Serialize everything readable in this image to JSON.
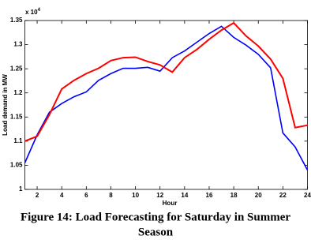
{
  "chart_data": {
    "type": "line",
    "x": [
      1,
      2,
      3,
      4,
      5,
      6,
      7,
      8,
      9,
      10,
      11,
      12,
      13,
      14,
      15,
      16,
      17,
      18,
      19,
      20,
      21,
      22,
      23,
      24
    ],
    "series": [
      {
        "color": "#0000ff",
        "values": [
          1.055,
          1.113,
          1.16,
          1.178,
          1.192,
          1.202,
          1.226,
          1.24,
          1.251,
          1.251,
          1.253,
          1.245,
          1.273,
          1.287,
          1.305,
          1.323,
          1.338,
          1.315,
          1.299,
          1.28,
          1.252,
          1.117,
          1.088,
          1.04
        ]
      },
      {
        "color": "#ff0000",
        "values": [
          1.1,
          1.11,
          1.155,
          1.208,
          1.226,
          1.24,
          1.251,
          1.267,
          1.273,
          1.274,
          1.265,
          1.258,
          1.243,
          1.273,
          1.29,
          1.311,
          1.33,
          1.345,
          1.318,
          1.297,
          1.27,
          1.23,
          1.128,
          1.133
        ]
      }
    ],
    "xlim": [
      1,
      24
    ],
    "xticks": [
      2,
      4,
      6,
      8,
      10,
      12,
      14,
      16,
      18,
      20,
      22,
      24
    ],
    "ylim": [
      1,
      1.35
    ],
    "yticks": [
      1,
      1.05,
      1.1,
      1.15,
      1.2,
      1.25,
      1.3,
      1.35
    ],
    "y_multiplier": {
      "base": "x 10",
      "exponent": "4"
    },
    "xlabel": "Hour",
    "ylabel": "Load demand in MW",
    "caption": [
      "Figure 14: Load Forecasting for Saturday in Summer",
      "Season"
    ]
  }
}
